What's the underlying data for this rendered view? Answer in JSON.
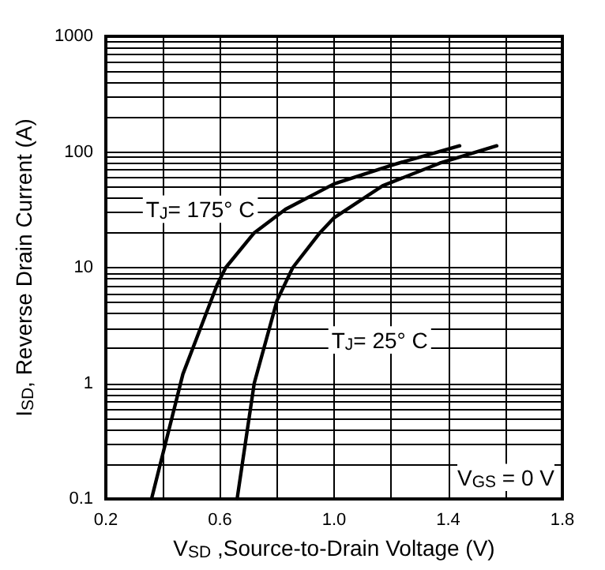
{
  "chart_data": {
    "type": "line",
    "xlabel": "V$_{SD}$ ,Source-to-Drain Voltage (V)",
    "ylabel": "I$_{SD}$, Reverse Drain Current (A)",
    "xlim": [
      0.2,
      1.8
    ],
    "xticks": [
      0.2,
      {
        "value": 0.4,
        "label": null
      },
      0.6,
      {
        "value": 0.8,
        "label": null
      },
      {
        "value": 1.0,
        "label": "1.0"
      },
      {
        "value": 1.2,
        "label": null
      },
      1.4,
      {
        "value": 1.6,
        "label": null
      },
      1.8
    ],
    "ylim": [
      0.1,
      1000
    ],
    "yticks": [
      0.1,
      1,
      10,
      100,
      1000
    ],
    "log": "y",
    "grid": true,
    "marker": "none",
    "line_style": "solid",
    "series": [
      {
        "name": "T$_{J}$= 175° C",
        "color": "#000000",
        "x": [
          0.36,
          0.47,
          0.59,
          0.62,
          0.72,
          0.83,
          1.0,
          1.21,
          1.44
        ],
        "values": [
          0.1,
          1.2,
          7.1,
          10,
          20,
          32,
          53,
          78,
          113
        ]
      },
      {
        "name": "T$_{J}$= 25° C",
        "color": "#000000",
        "x": [
          0.66,
          0.72,
          0.8,
          0.855,
          0.95,
          1.0,
          1.17,
          1.37,
          1.57
        ],
        "values": [
          0.1,
          1,
          5.2,
          10,
          20,
          27,
          51,
          80,
          113
        ]
      }
    ],
    "annotations": [
      "V$_{GS}$ = 0 V"
    ]
  }
}
